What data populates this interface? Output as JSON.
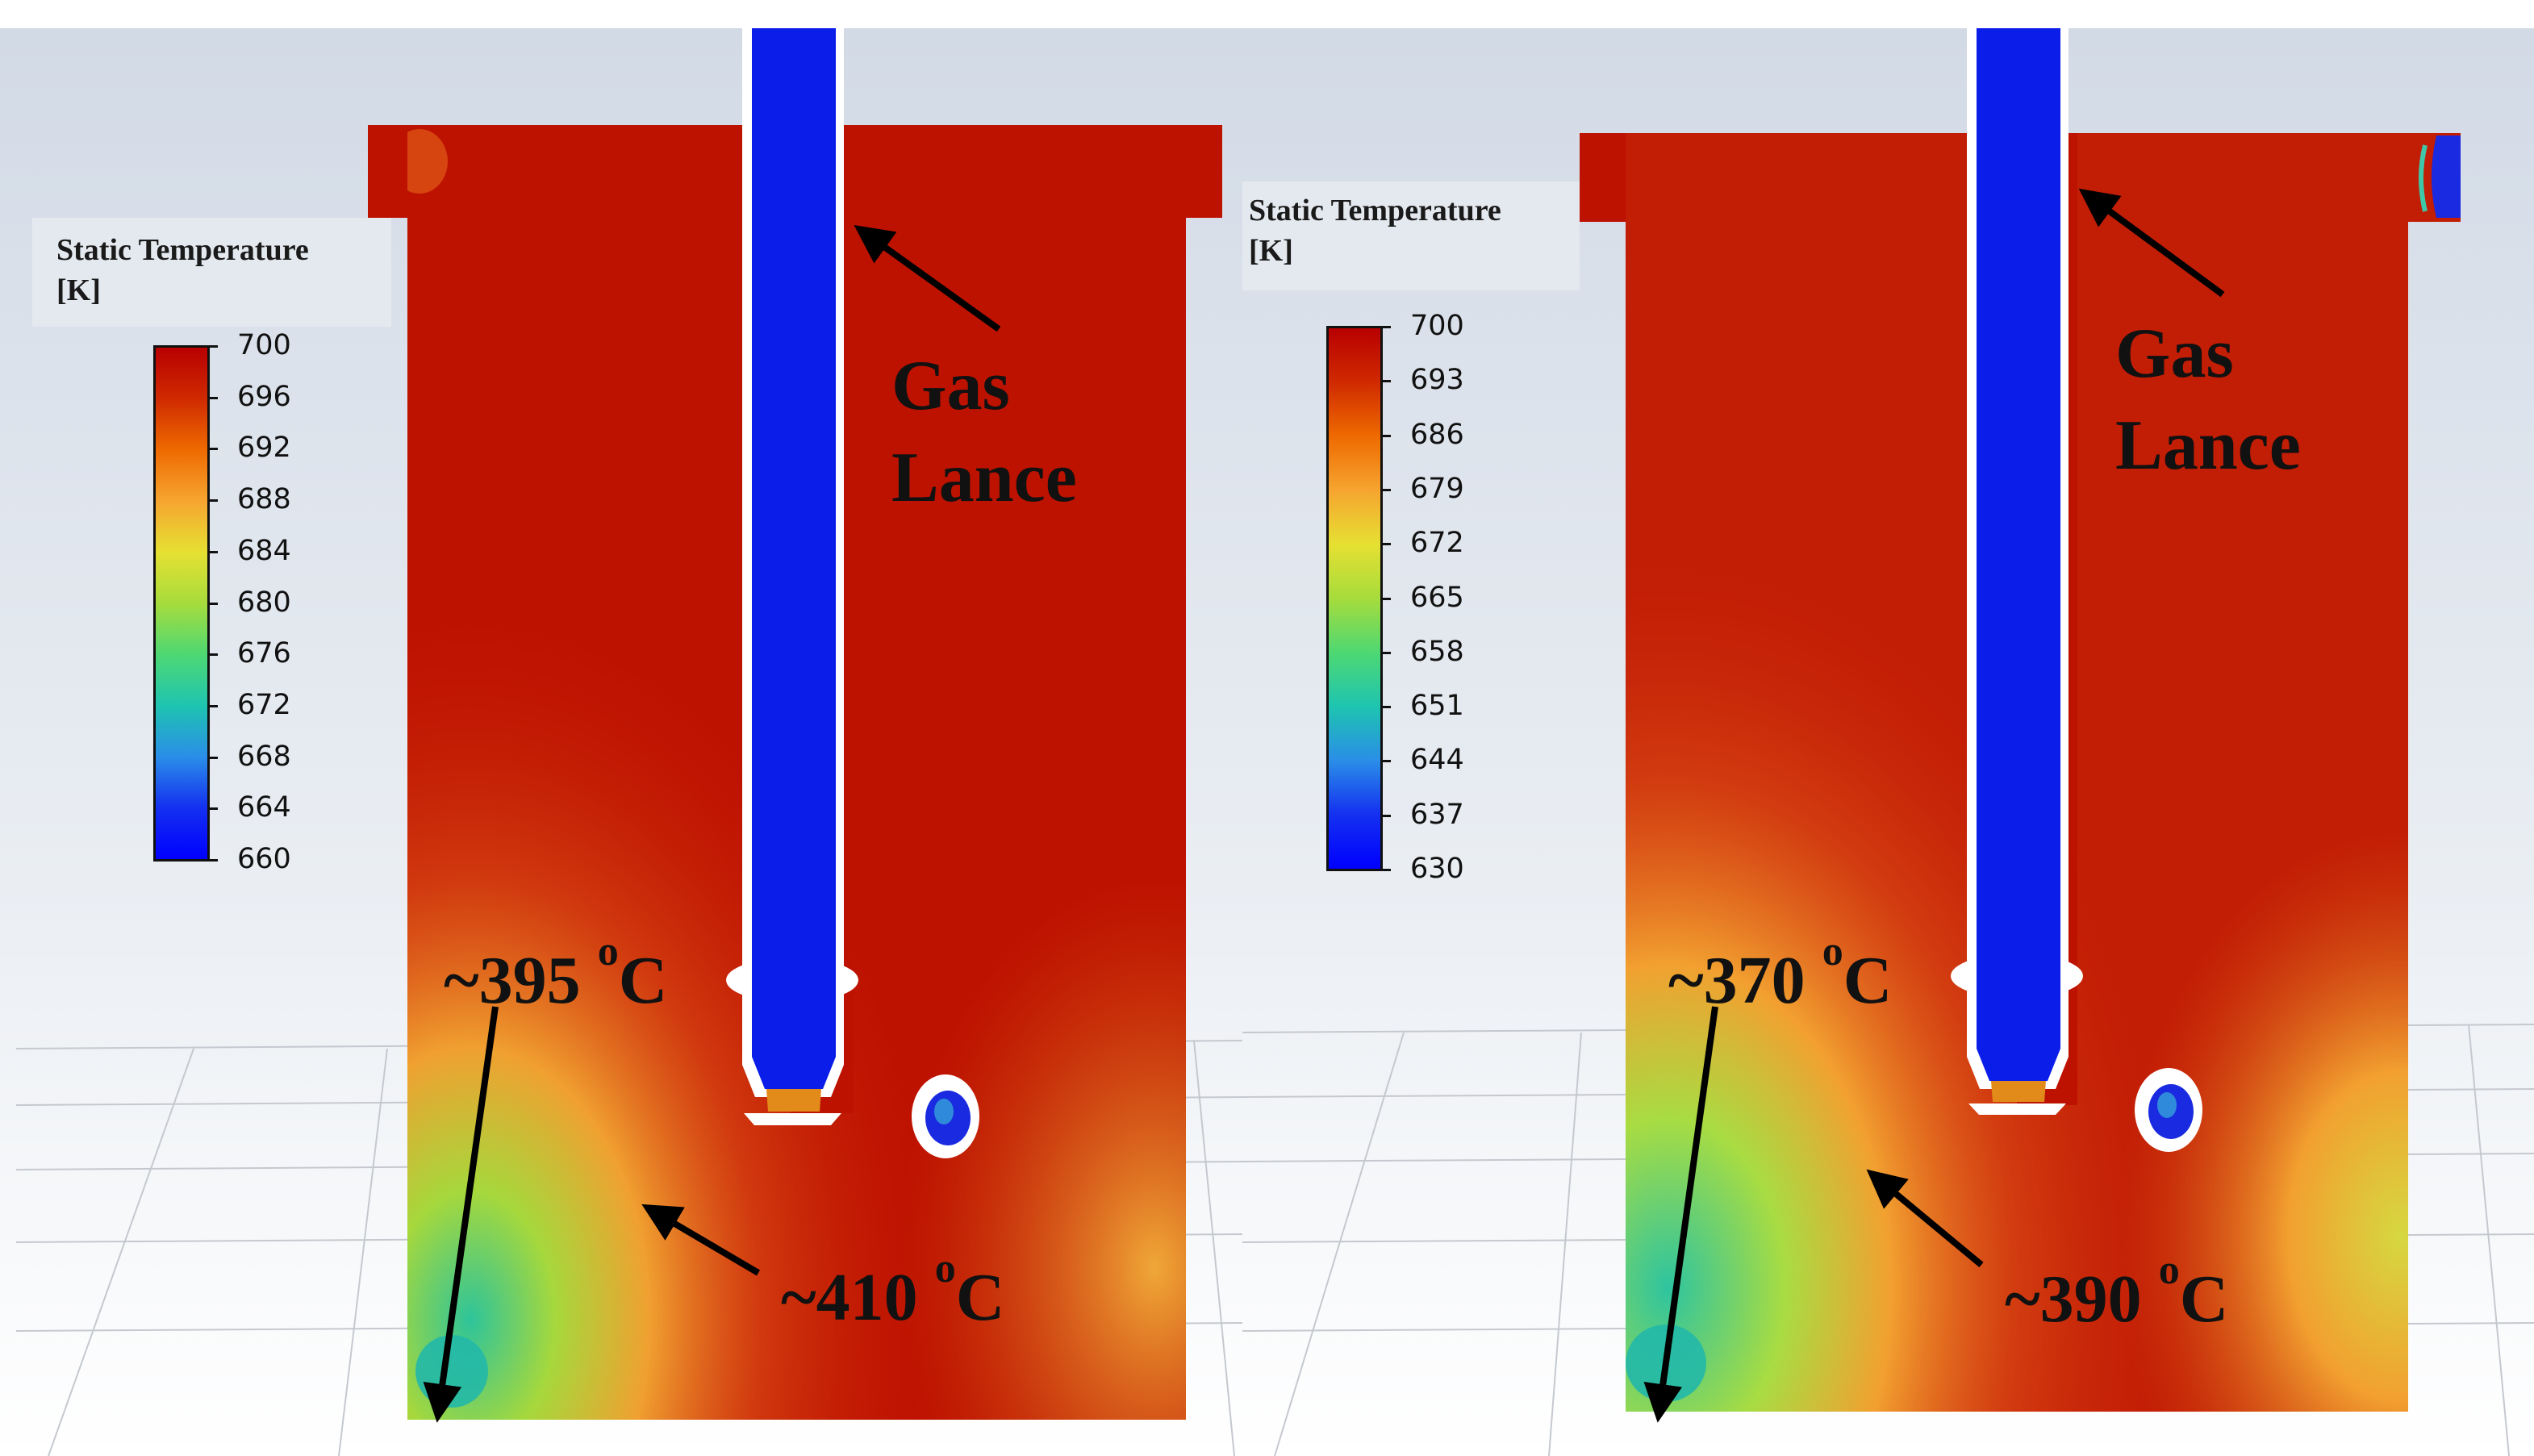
{
  "panels": [
    {
      "legend": {
        "title_line1": "Static Temperature",
        "title_line2": "[K]",
        "ticks": [
          "700",
          "696",
          "692",
          "688",
          "684",
          "680",
          "676",
          "672",
          "668",
          "664",
          "660"
        ]
      },
      "lance_label_line1": "Gas",
      "lance_label_line2": "Lance",
      "annotation_a": {
        "prefix": "~395 ",
        "sup": "o",
        "suffix": "C"
      },
      "annotation_b": {
        "prefix": "~410 ",
        "sup": "o",
        "suffix": "C"
      }
    },
    {
      "legend": {
        "title_line1": "Static Temperature",
        "title_line2": "[K]",
        "ticks": [
          "700",
          "693",
          "686",
          "679",
          "672",
          "665",
          "658",
          "651",
          "644",
          "637",
          "630"
        ]
      },
      "lance_label_line1": "Gas",
      "lance_label_line2": "Lance",
      "annotation_a": {
        "prefix": "~370 ",
        "sup": "o",
        "suffix": "C"
      },
      "annotation_b": {
        "prefix": "~390 ",
        "sup": "o",
        "suffix": "C"
      }
    }
  ],
  "colors": {
    "hot": "#b80f00",
    "lance": "#0b1de8",
    "colormap": [
      "#b80000",
      "#d02a00",
      "#ee6a00",
      "#f6a530",
      "#e6e032",
      "#a6dc3c",
      "#4ed873",
      "#1ec4b0",
      "#2a8ee8",
      "#1430f0",
      "#0000ff"
    ]
  }
}
